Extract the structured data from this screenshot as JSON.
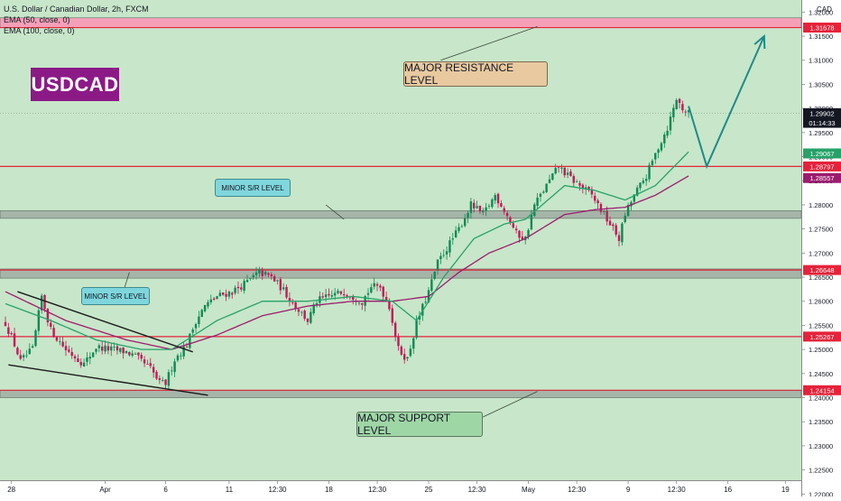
{
  "header": {
    "symbol_line": "U.S. Dollar / Canadian Dollar, 2h, FXCM",
    "ema50_label": "EMA (50, close, 0)",
    "ema100_label": "EMA (100, close, 0)",
    "currency": "CAD"
  },
  "ticker_badge": "USDCAD",
  "annotations": {
    "major_resistance": "MAJOR RESISTANCE LEVEL",
    "major_support": "MAJOR SUPPORT LEVEL",
    "minor_sr_upper": "MINOR S/R LEVEL",
    "minor_sr_lower": "MINOR S/R LEVEL"
  },
  "colors": {
    "plot_bg": "#c8e6c9",
    "zone_resistance": "#f5a0b8",
    "zone_grey": "#a5b5a8",
    "line_red": "#e5223a",
    "candle_up": "#0e8a55",
    "candle_down": "#c2185b",
    "ema50": "#26a269",
    "ema100": "#9c1b6e",
    "arrow": "#1f8a8a",
    "trendline": "#1b1b1b"
  },
  "chart_data": {
    "type": "candlestick",
    "title": "U.S. Dollar / Canadian Dollar, 2h, FXCM",
    "ylabel": "CAD",
    "ylim": [
      1.2195,
      1.3225
    ],
    "y_ticks": [
      "1.32000",
      "1.31500",
      "1.31000",
      "1.30500",
      "1.30000",
      "1.29500",
      "1.29000",
      "1.28500",
      "1.28000",
      "1.27500",
      "1.27000",
      "1.26500",
      "1.26000",
      "1.25500",
      "1.25000",
      "1.24500",
      "1.24000",
      "1.23500",
      "1.23000",
      "1.22500",
      "1.22000"
    ],
    "x_ticks": [
      {
        "label": "28",
        "i": 2
      },
      {
        "label": "Apr",
        "i": 33
      },
      {
        "label": "6",
        "i": 53
      },
      {
        "label": "11",
        "i": 74
      },
      {
        "label": "12:30",
        "i": 90
      },
      {
        "label": "18",
        "i": 107
      },
      {
        "label": "12:30",
        "i": 123
      },
      {
        "label": "25",
        "i": 140
      },
      {
        "label": "12:30",
        "i": 156
      },
      {
        "label": "May",
        "i": 173
      },
      {
        "label": "12:30",
        "i": 189
      },
      {
        "label": "9",
        "i": 206
      },
      {
        "label": "12:30",
        "i": 222
      },
      {
        "label": "16",
        "i": 239
      },
      {
        "label": "19",
        "i": 258
      }
    ],
    "price_labels": [
      {
        "text": "1.31678",
        "value": 1.31678,
        "bg": "#e5223a",
        "fg": "#ffffff"
      },
      {
        "text": "1.29902",
        "value": 1.29902,
        "bg": "#131722",
        "fg": "#ffffff"
      },
      {
        "text": "01:14:33",
        "value": 1.29702,
        "bg": "#131722",
        "fg": "#ffffff"
      },
      {
        "text": "1.29067",
        "value": 1.29067,
        "bg": "#26a269",
        "fg": "#ffffff"
      },
      {
        "text": "1.28797",
        "value": 1.28797,
        "bg": "#e5223a",
        "fg": "#ffffff"
      },
      {
        "text": "1.28557",
        "value": 1.28557,
        "bg": "#9c1b6e",
        "fg": "#ffffff"
      },
      {
        "text": "1.26648",
        "value": 1.26648,
        "bg": "#e5223a",
        "fg": "#ffffff"
      },
      {
        "text": "1.25267",
        "value": 1.25267,
        "bg": "#e5223a",
        "fg": "#ffffff"
      },
      {
        "text": "1.24154",
        "value": 1.24154,
        "bg": "#e5223a",
        "fg": "#ffffff"
      }
    ],
    "horizontal_lines": [
      1.31678,
      1.28797,
      1.26648,
      1.25267,
      1.24154
    ],
    "current_price": 1.29902,
    "zones": [
      {
        "name": "major-resistance-zone",
        "from": 1.3168,
        "to": 1.3188,
        "color": "#f5a0b8"
      },
      {
        "name": "minor-sr-zone-upper",
        "from": 1.2772,
        "to": 1.2788,
        "color": "#a5b5a8"
      },
      {
        "name": "minor-sr-zone-lower",
        "from": 1.2648,
        "to": 1.2667,
        "color": "#a5b5a8"
      },
      {
        "name": "major-support-zone",
        "from": 1.24,
        "to": 1.2415,
        "color": "#a5b5a8"
      }
    ],
    "close_anchors": [
      [
        0,
        1.2555
      ],
      [
        3,
        1.251
      ],
      [
        5,
        1.2475
      ],
      [
        9,
        1.25
      ],
      [
        12,
        1.261
      ],
      [
        15,
        1.254
      ],
      [
        20,
        1.25
      ],
      [
        26,
        1.247
      ],
      [
        30,
        1.2505
      ],
      [
        35,
        1.25
      ],
      [
        40,
        1.2495
      ],
      [
        43,
        1.2485
      ],
      [
        48,
        1.246
      ],
      [
        51,
        1.243
      ],
      [
        53,
        1.243
      ],
      [
        56,
        1.248
      ],
      [
        60,
        1.251
      ],
      [
        63,
        1.256
      ],
      [
        66,
        1.259
      ],
      [
        70,
        1.261
      ],
      [
        75,
        1.262
      ],
      [
        80,
        1.264
      ],
      [
        84,
        1.266
      ],
      [
        88,
        1.265
      ],
      [
        91,
        1.263
      ],
      [
        96,
        1.259
      ],
      [
        100,
        1.256
      ],
      [
        103,
        1.26
      ],
      [
        107,
        1.261
      ],
      [
        112,
        1.262
      ],
      [
        118,
        1.26
      ],
      [
        121,
        1.263
      ],
      [
        124,
        1.263
      ],
      [
        127,
        1.259
      ],
      [
        130,
        1.25
      ],
      [
        133,
        1.248
      ],
      [
        136,
        1.2555
      ],
      [
        140,
        1.262
      ],
      [
        143,
        1.268
      ],
      [
        147,
        1.272
      ],
      [
        150,
        1.275
      ],
      [
        154,
        1.28
      ],
      [
        158,
        1.278
      ],
      [
        162,
        1.282
      ],
      [
        165,
        1.279
      ],
      [
        169,
        1.274
      ],
      [
        172,
        1.273
      ],
      [
        175,
        1.28
      ],
      [
        179,
        1.284
      ],
      [
        183,
        1.288
      ],
      [
        186,
        1.286
      ],
      [
        190,
        1.284
      ],
      [
        194,
        1.282
      ],
      [
        197,
        1.279
      ],
      [
        200,
        1.276
      ],
      [
        203,
        1.273
      ],
      [
        205,
        1.278
      ],
      [
        208,
        1.282
      ],
      [
        212,
        1.286
      ],
      [
        216,
        1.292
      ],
      [
        219,
        1.296
      ],
      [
        222,
        1.302
      ],
      [
        224,
        1.3
      ],
      [
        226,
        1.299
      ]
    ],
    "ema50_anchors": [
      [
        0,
        1.2595
      ],
      [
        15,
        1.256
      ],
      [
        30,
        1.252
      ],
      [
        45,
        1.25
      ],
      [
        55,
        1.25
      ],
      [
        70,
        1.256
      ],
      [
        85,
        1.26
      ],
      [
        100,
        1.26
      ],
      [
        115,
        1.261
      ],
      [
        128,
        1.26
      ],
      [
        136,
        1.256
      ],
      [
        145,
        1.265
      ],
      [
        155,
        1.273
      ],
      [
        165,
        1.276
      ],
      [
        172,
        1.277
      ],
      [
        185,
        1.284
      ],
      [
        195,
        1.283
      ],
      [
        205,
        1.281
      ],
      [
        215,
        1.284
      ],
      [
        226,
        1.291
      ]
    ],
    "ema100_anchors": [
      [
        0,
        1.262
      ],
      [
        20,
        1.256
      ],
      [
        40,
        1.252
      ],
      [
        55,
        1.25
      ],
      [
        70,
        1.253
      ],
      [
        85,
        1.257
      ],
      [
        100,
        1.259
      ],
      [
        115,
        1.26
      ],
      [
        128,
        1.26
      ],
      [
        140,
        1.261
      ],
      [
        150,
        1.266
      ],
      [
        160,
        1.27
      ],
      [
        172,
        1.273
      ],
      [
        185,
        1.278
      ],
      [
        195,
        1.279
      ],
      [
        205,
        1.2795
      ],
      [
        215,
        1.282
      ],
      [
        226,
        1.286
      ]
    ],
    "forecast_path": [
      [
        226,
        1.3005
      ],
      [
        232,
        1.288
      ],
      [
        251,
        1.315
      ]
    ],
    "trendlines": [
      {
        "from": [
          4,
          1.262
        ],
        "to": [
          62,
          1.2495
        ]
      },
      {
        "from": [
          1,
          1.2468
        ],
        "to": [
          67,
          1.2405
        ]
      }
    ],
    "callout_pointers": [
      {
        "name": "resistance-pointer",
        "from": [
          144,
          1.31
        ],
        "to": [
          176,
          1.317
        ]
      },
      {
        "name": "support-pointer",
        "from": [
          158,
          1.236
        ],
        "to": [
          176,
          1.2413
        ]
      },
      {
        "name": "minor-upper-pointer",
        "from": [
          106,
          1.28
        ],
        "to": [
          112,
          1.277
        ]
      },
      {
        "name": "minor-lower-pointer",
        "from": [
          39,
          1.262
        ],
        "to": [
          41,
          1.266
        ]
      }
    ]
  }
}
